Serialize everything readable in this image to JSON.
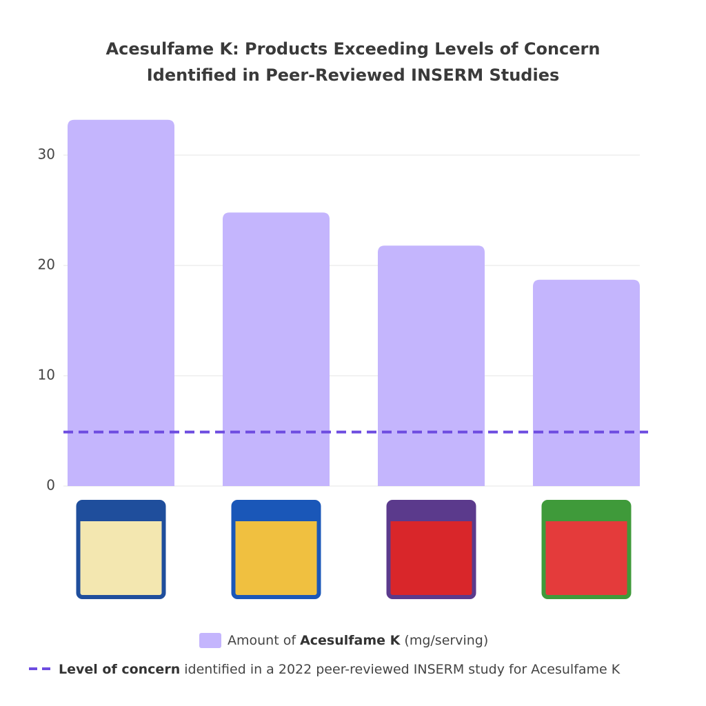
{
  "chart_data": {
    "type": "bar",
    "title": [
      "Acesulfame K: Products Exceeding Levels of Concern",
      "Identified in Peer-Reviewed INSERM Studies"
    ],
    "categories": [
      null,
      null,
      null,
      null
    ],
    "series": [
      {
        "name": [
          {
            "text": "Amount of "
          },
          {
            "text": "Acesulfame K",
            "bold": true
          },
          {
            "text": " (mg/serving)"
          }
        ],
        "color": "#c4b5fd",
        "values": [
          33.2,
          24.8,
          21.8,
          18.7
        ]
      }
    ],
    "reference_line": {
      "name": [
        {
          "text": "Level of concern",
          "bold": true
        },
        {
          "text": " identified in a 2022 peer-reviewed INSERM study for Acesulfame K"
        }
      ],
      "color": "#6d4ce0",
      "value": 4.9
    },
    "ylim": [
      0,
      35
    ],
    "yticks": [
      0,
      10,
      20,
      30
    ],
    "grid": true
  }
}
